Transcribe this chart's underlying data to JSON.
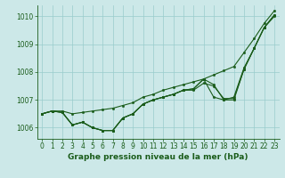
{
  "x": [
    0,
    1,
    2,
    3,
    4,
    5,
    6,
    7,
    8,
    9,
    10,
    11,
    12,
    13,
    14,
    15,
    16,
    17,
    18,
    19,
    20,
    21,
    22,
    23
  ],
  "line1": [
    1006.5,
    1006.6,
    1006.6,
    1006.5,
    1006.55,
    1006.6,
    1006.65,
    1006.7,
    1006.8,
    1006.9,
    1007.1,
    1007.2,
    1007.35,
    1007.45,
    1007.55,
    1007.65,
    1007.75,
    1007.9,
    1008.05,
    1008.2,
    1008.7,
    1009.2,
    1009.75,
    1010.2
  ],
  "line2": [
    1006.5,
    1006.6,
    1006.55,
    1006.1,
    1006.2,
    1006.0,
    1005.9,
    1005.9,
    1006.35,
    1006.5,
    1006.85,
    1007.0,
    1007.1,
    1007.2,
    1007.35,
    1007.4,
    1007.75,
    1007.55,
    1007.0,
    1007.0,
    1008.1,
    1008.85,
    1009.6,
    1010.05
  ],
  "line3": [
    1006.5,
    1006.6,
    1006.55,
    1006.1,
    1006.2,
    1006.0,
    1005.9,
    1005.9,
    1006.35,
    1006.5,
    1006.85,
    1007.0,
    1007.1,
    1007.2,
    1007.35,
    1007.35,
    1007.6,
    1007.5,
    1007.05,
    1007.05,
    1008.1,
    1008.85,
    1009.6,
    1010.05
  ],
  "line4": [
    1006.5,
    1006.6,
    1006.55,
    1006.1,
    1006.2,
    1006.0,
    1005.9,
    1005.9,
    1006.35,
    1006.5,
    1006.85,
    1007.0,
    1007.1,
    1007.2,
    1007.35,
    1007.4,
    1007.75,
    1007.1,
    1007.0,
    1007.1,
    1008.15,
    1008.85,
    1009.6,
    1010.0
  ],
  "background_color": "#cce8e8",
  "line_color": "#1a5c1a",
  "grid_color": "#99cccc",
  "xlabel": "Graphe pression niveau de la mer (hPa)",
  "ylim": [
    1005.6,
    1010.4
  ],
  "xlim": [
    -0.5,
    23.5
  ],
  "yticks": [
    1006,
    1007,
    1008,
    1009,
    1010
  ],
  "xticks": [
    0,
    1,
    2,
    3,
    4,
    5,
    6,
    7,
    8,
    9,
    10,
    11,
    12,
    13,
    14,
    15,
    16,
    17,
    18,
    19,
    20,
    21,
    22,
    23
  ],
  "marker": "o",
  "markersize": 1.8,
  "linewidth": 0.8,
  "xlabel_fontsize": 6.5,
  "tick_fontsize": 5.5
}
